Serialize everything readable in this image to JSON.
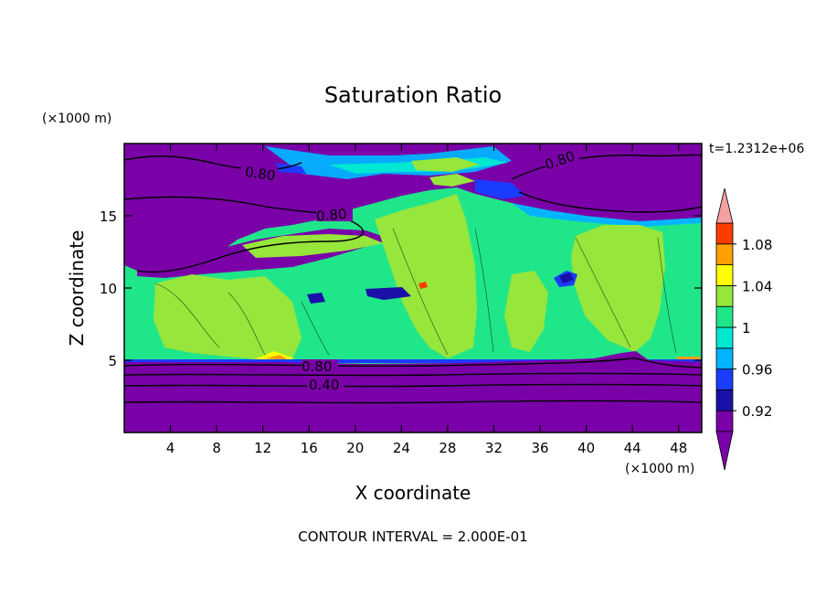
{
  "chart_data": {
    "type": "filled-contour",
    "title": "Saturation Ratio",
    "xlabel": "X coordinate",
    "ylabel": "Z coordinate",
    "x_unit": "(×1000 m)",
    "y_unit": "(×1000 m)",
    "time_label": "t=1.2312e+06",
    "footer": "CONTOUR INTERVAL = 2.000E-01",
    "xlim": [
      0,
      50
    ],
    "ylim": [
      0,
      20
    ],
    "x_ticks": [
      4,
      8,
      12,
      16,
      20,
      24,
      28,
      32,
      36,
      40,
      44,
      48
    ],
    "y_ticks": [
      5,
      10,
      15
    ],
    "colorbar": {
      "levels": [
        0.9,
        0.92,
        0.94,
        0.96,
        0.98,
        1.0,
        1.02,
        1.04,
        1.06,
        1.08,
        1.1
      ],
      "tick_labels": [
        {
          "value": 0.92,
          "label": "0.92"
        },
        {
          "value": 0.96,
          "label": "0.96"
        },
        {
          "value": 1.0,
          "label": "1"
        },
        {
          "value": 1.04,
          "label": "1.04"
        },
        {
          "value": 1.08,
          "label": "1.08"
        }
      ],
      "colors": [
        "#7a00a8",
        "#1a10a8",
        "#1a3cff",
        "#00b4ff",
        "#00e8d2",
        "#20e68a",
        "#96e63c",
        "#ffff00",
        "#ffa000",
        "#ff3c00",
        "#ff1e1e"
      ],
      "under_color": "#7a00a8",
      "over_color": "#f4a0a0"
    },
    "contour_labels": [
      "0.80",
      "0.80",
      "0.80",
      "0.80",
      "0.40"
    ],
    "colors": {
      "purple": "#7a00a8",
      "navy": "#1a10a8",
      "blue": "#1a3cff",
      "cyan": "#00b4ff",
      "aqua": "#00e8d2",
      "green": "#20e68a",
      "lime": "#96e63c",
      "yellow": "#ffff00",
      "orange": "#ffa000",
      "red": "#ff3c00"
    }
  }
}
